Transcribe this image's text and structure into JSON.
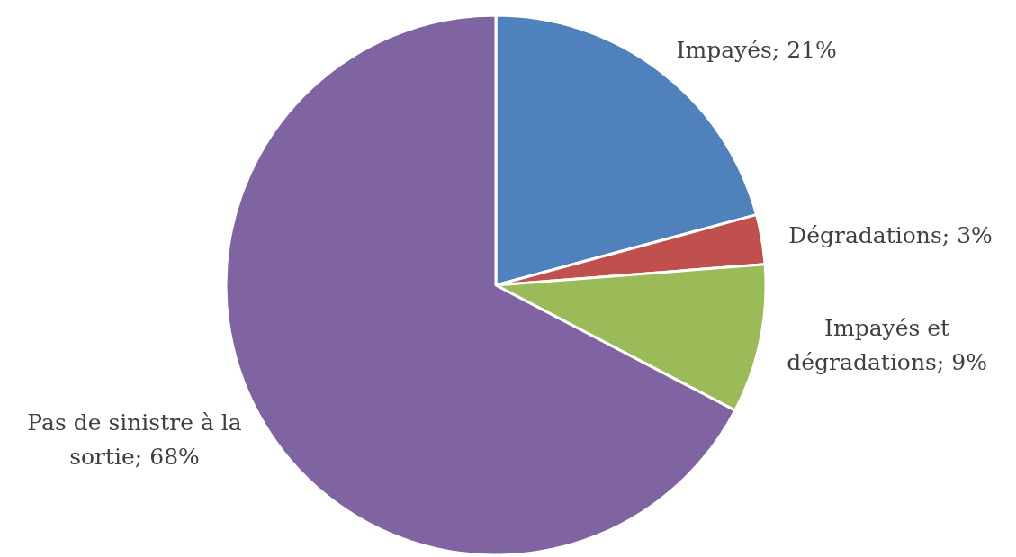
{
  "chart_data": {
    "type": "pie",
    "categories": [
      "Impayés",
      "Dégradations",
      "Impayés et dégradations",
      "Pas de sinistre à la sortie"
    ],
    "values": [
      21,
      3,
      9,
      68
    ],
    "value_labels": [
      "21%",
      "3%",
      "9%",
      "68%"
    ],
    "colors": [
      "#4f81bd",
      "#c0504d",
      "#9bbb59",
      "#8064a2"
    ]
  }
}
